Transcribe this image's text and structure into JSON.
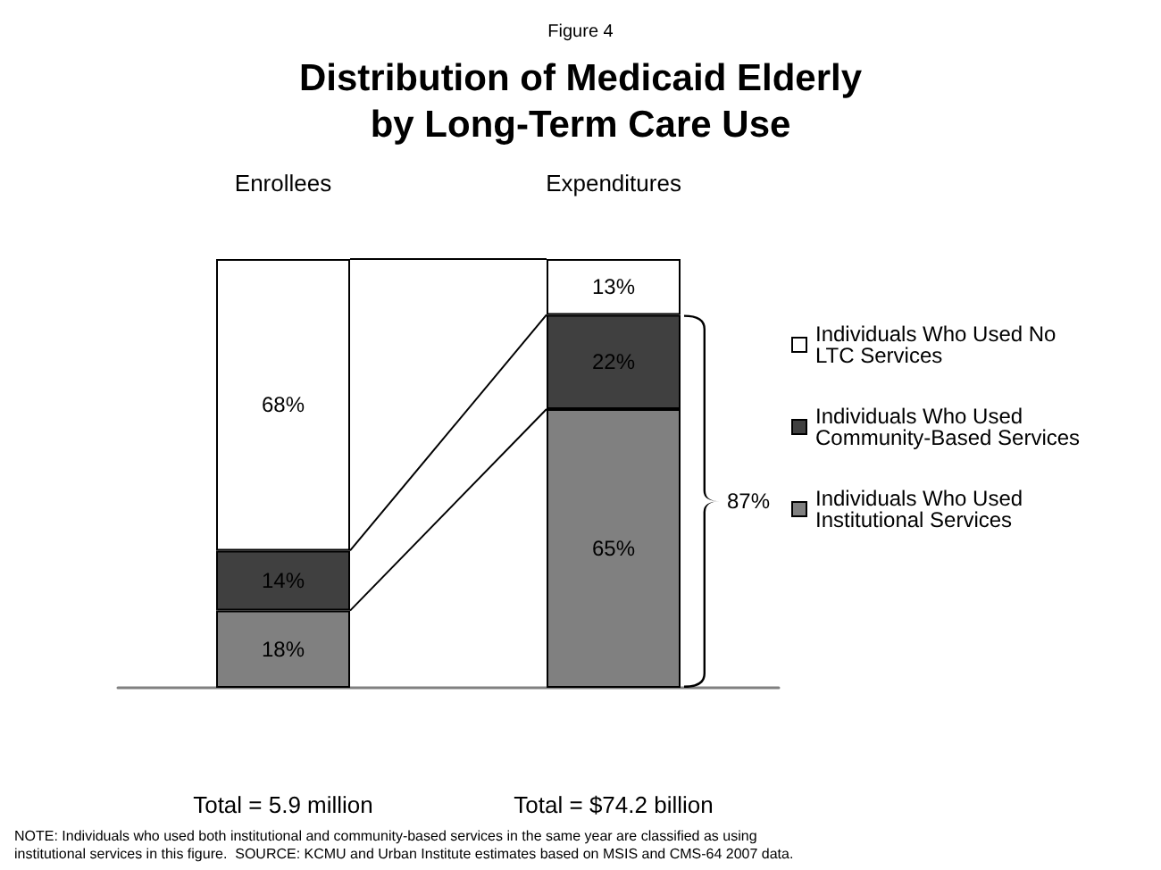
{
  "chart_data": {
    "type": "bar",
    "stacked": true,
    "subtitle": "Figure 4",
    "title": "Distribution of Medicaid Elderly\nby Long-Term Care Use",
    "categories": [
      "Enrollees",
      "Expenditures"
    ],
    "series": [
      {
        "name": "Individuals Who Used Institutional Services",
        "color": "#808080",
        "values": [
          18,
          65
        ],
        "value_labels": [
          "18%",
          "65%"
        ]
      },
      {
        "name": "Individuals Who Used Community-Based Services",
        "color": "#404040",
        "values": [
          14,
          22
        ],
        "value_labels": [
          "14%",
          "22%"
        ]
      },
      {
        "name": "Individuals Who Used No LTC Services",
        "color": "#ffffff",
        "values": [
          68,
          13
        ],
        "value_labels": [
          "68%",
          "13%"
        ]
      }
    ],
    "legend": "right",
    "annotations": [
      "Total = 5.9 million",
      "Total = $74.2 billion",
      "87%",
      "NOTE: Individuals who used both institutional and community-based services in the same year are classified as using\ninstitutional services in this figure.  SOURCE: KCMU and Urban Institute estimates based on MSIS and CMS-64 2007 data."
    ]
  }
}
